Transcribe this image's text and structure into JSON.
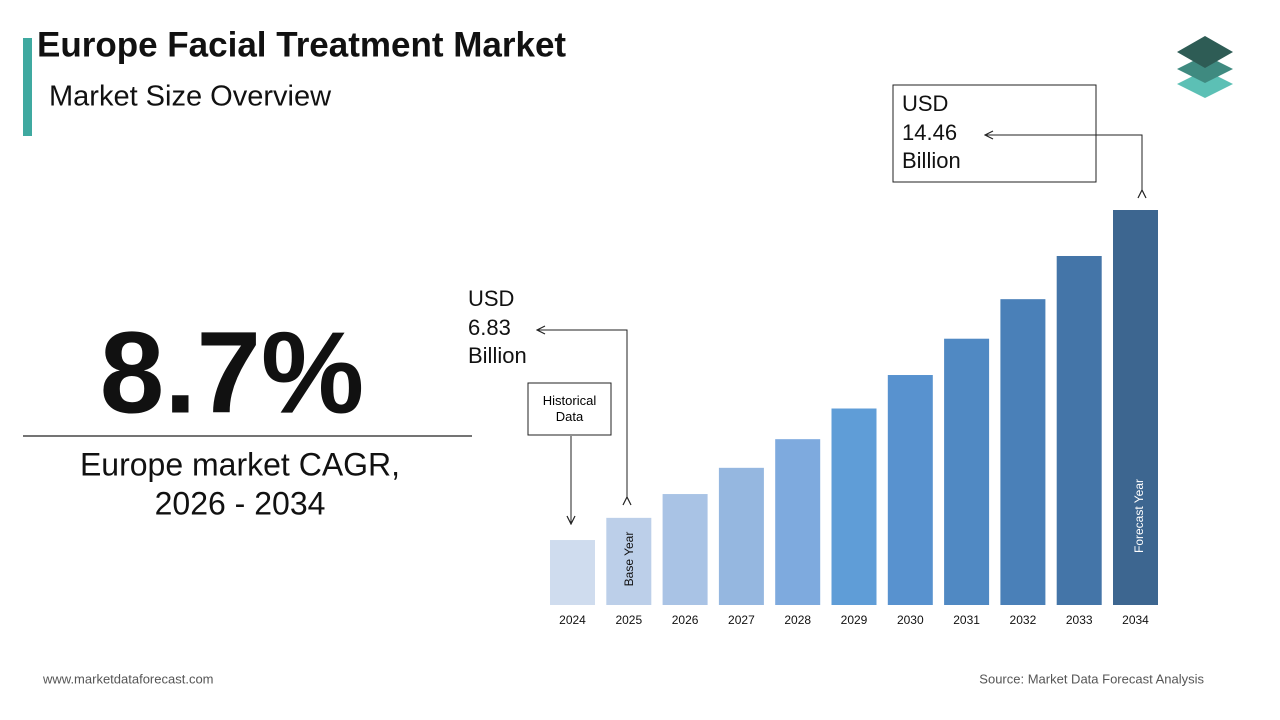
{
  "header": {
    "title": "Europe Facial Treatment Market",
    "subtitle": "Market Size Overview"
  },
  "cagr": {
    "value": "8.7%",
    "caption": [
      "Europe market CAGR,",
      "2026 - 2034"
    ]
  },
  "chart_data": {
    "type": "bar",
    "categories": [
      "2024",
      "2025",
      "2026",
      "2027",
      "2028",
      "2029",
      "2030",
      "2031",
      "2032",
      "2033",
      "2034"
    ],
    "values": [
      6.28,
      6.83,
      7.42,
      8.07,
      8.78,
      9.54,
      10.37,
      11.27,
      12.25,
      13.32,
      14.46
    ],
    "colors": [
      "#cfdcee",
      "#bccfe9",
      "#a9c3e5",
      "#95b7e0",
      "#7eaade",
      "#5f9dd7",
      "#5892cf",
      "#5089c3",
      "#4a80b8",
      "#4475a8",
      "#3d6690"
    ],
    "ylim": [
      4.67,
      14.46
    ],
    "annotations": [
      {
        "prefix": "USD",
        "value": 6.83,
        "suffix": "Billion"
      },
      {
        "prefix": "USD",
        "value": 14.46,
        "suffix": "Billion"
      }
    ],
    "historical_label": "Historical Data",
    "base_year_label": "Base Year",
    "forecast_year_label": "Forecast Year"
  },
  "footer": {
    "website": "www.marketdataforecast.com",
    "source": "Source: Market Data Forecast Analysis"
  }
}
